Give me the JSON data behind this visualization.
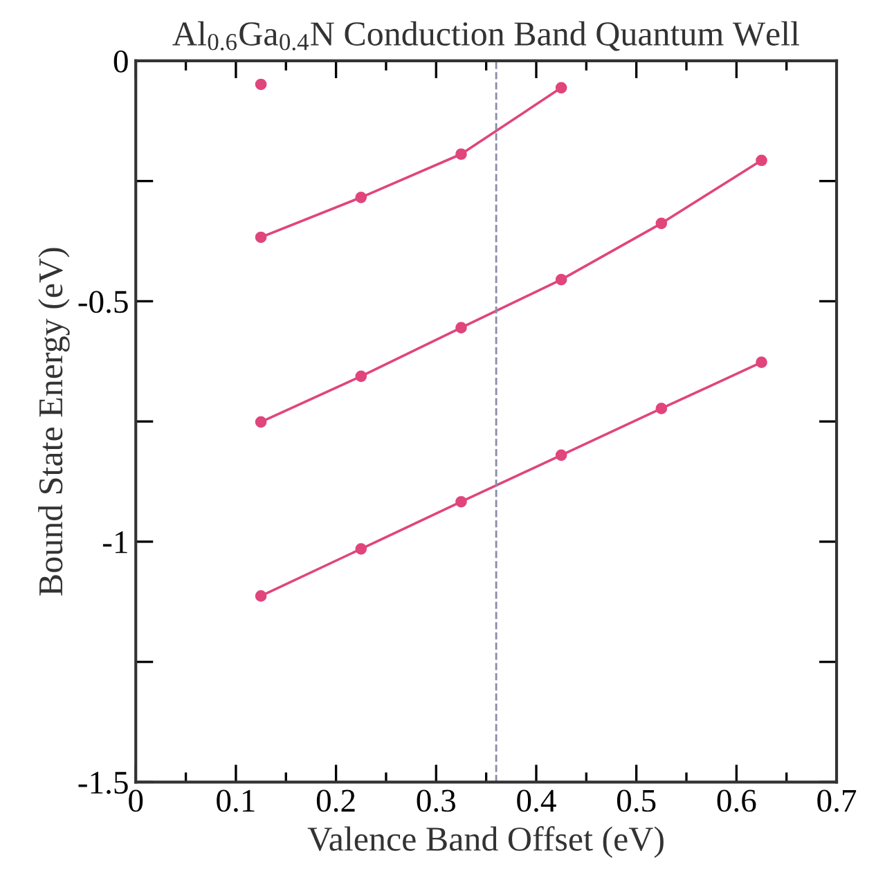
{
  "chart_data": {
    "type": "line",
    "title": "Al$_{0.6}$Ga$_{0.4}$N Conduction Band Quantum Well",
    "xlabel": "Valence Band Offset (eV)",
    "ylabel": "Bound State Energy (eV)",
    "xlim": [
      0,
      0.7
    ],
    "ylim": [
      -1.5,
      0
    ],
    "xticks": [
      0,
      {
        "value": 0.05,
        "label": null
      },
      0.1,
      {
        "value": 0.15,
        "label": null
      },
      0.2,
      {
        "value": 0.25,
        "label": null
      },
      0.3,
      {
        "value": 0.35,
        "label": null
      },
      0.4,
      {
        "value": 0.45,
        "label": null
      },
      0.5,
      {
        "value": 0.55,
        "label": null
      },
      0.6,
      {
        "value": 0.65,
        "label": null
      },
      0.7
    ],
    "yticks": [
      {
        "value": -1.5,
        "label": "-1.5"
      },
      {
        "value": -1.25,
        "label": null
      },
      {
        "value": -1,
        "label": "-1"
      },
      {
        "value": -0.75,
        "label": null
      },
      {
        "value": -0.5,
        "label": "-0.5"
      },
      {
        "value": -0.25,
        "label": null
      },
      0
    ],
    "grid": false,
    "legend": false,
    "marker": "circle",
    "line_style": "solid",
    "series": [
      {
        "color": "#e0457b",
        "x": [
          0.125,
          0.225,
          0.325,
          0.425
        ],
        "values": [
          -0.367,
          -0.284,
          -0.194,
          -0.056
        ]
      },
      {
        "type": "scatter",
        "color": "#e0457b",
        "x": [
          0.125
        ],
        "values": [
          -0.049
        ]
      },
      {
        "color": "#e0457b",
        "x": [
          0.125,
          0.225,
          0.325,
          0.425,
          0.525,
          0.625
        ],
        "values": [
          -0.751,
          -0.656,
          -0.555,
          -0.455,
          -0.338,
          -0.207
        ]
      },
      {
        "color": "#e0457b",
        "x": [
          0.125,
          0.225,
          0.325,
          0.425,
          0.525,
          0.625
        ],
        "values": [
          -1.113,
          -1.015,
          -0.917,
          -0.82,
          -0.723,
          -0.627
        ]
      }
    ],
    "ref_lines": [
      {
        "axis": "x",
        "value": 0.36,
        "color": "#8a8aa8",
        "line_style": "dashed"
      }
    ]
  }
}
